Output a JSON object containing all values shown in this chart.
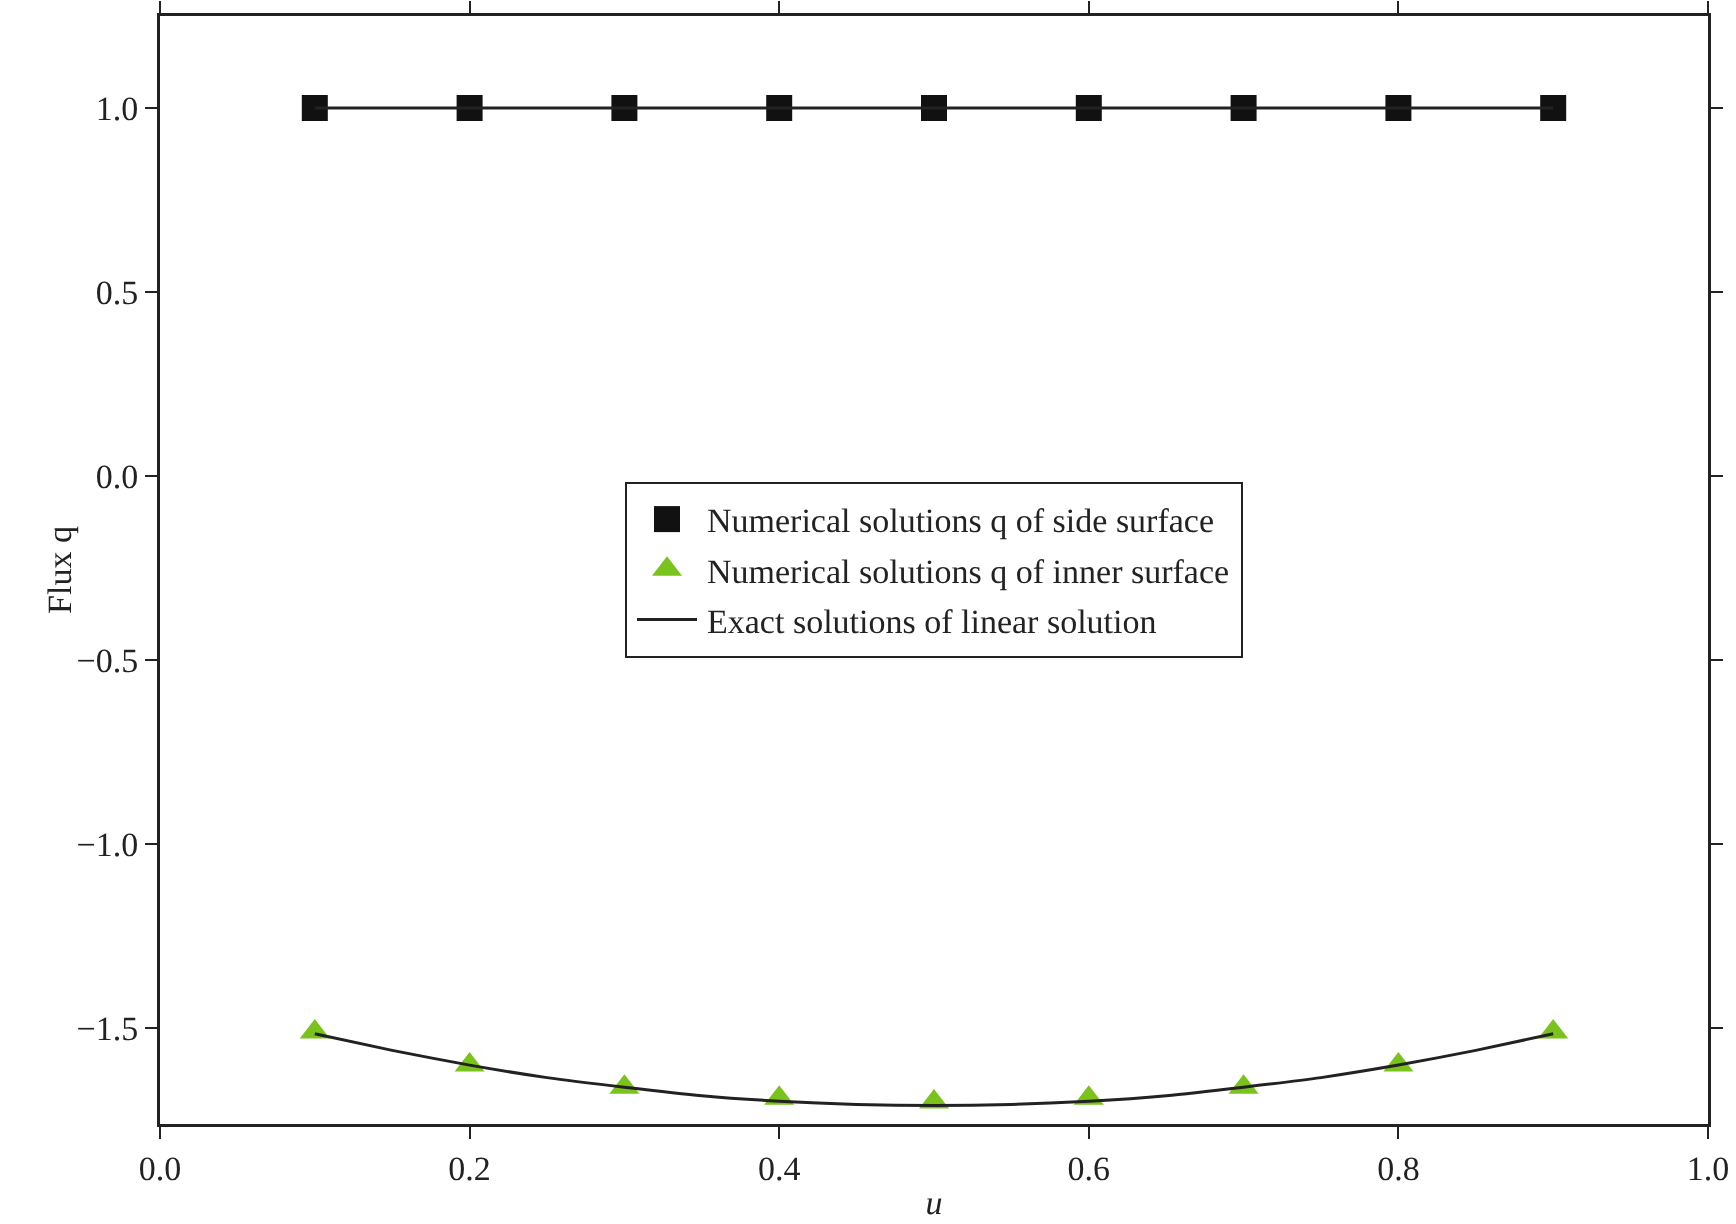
{
  "chart_data": {
    "type": "scatter",
    "xlabel": "u",
    "ylabel": "Flux q",
    "xlim": [
      0,
      1
    ],
    "ylim": [
      -1.76,
      1.25
    ],
    "xticks": [
      {
        "value": 0,
        "label": "0.0"
      },
      0.2,
      0.4,
      0.6,
      0.8,
      {
        "value": 1,
        "label": "1.0"
      }
    ],
    "yticks": [
      {
        "value": -1.5,
        "label": "−1.5"
      },
      {
        "value": -1,
        "label": "−1.0"
      },
      {
        "value": -0.5,
        "label": "−0.5"
      },
      {
        "value": 0,
        "label": "0.0"
      },
      0.5,
      {
        "value": 1,
        "label": "1.0"
      }
    ],
    "grid": false,
    "legend": "center",
    "series": [
      {
        "name": "Numerical solutions q of side surface",
        "color": "#111111",
        "marker": "square",
        "x": [
          0.1,
          0.2,
          0.3,
          0.4,
          0.5,
          0.6,
          0.7,
          0.8,
          0.9
        ],
        "values": [
          1,
          1,
          1,
          1,
          1,
          1,
          1,
          1,
          1
        ]
      },
      {
        "name": "Numerical solutions q of inner surface",
        "color": "#7ac21c",
        "marker": "triangle",
        "x": [
          0.1,
          0.2,
          0.3,
          0.4,
          0.5,
          0.6,
          0.7,
          0.8,
          0.9
        ],
        "values": [
          -1.51,
          -1.6,
          -1.66,
          -1.69,
          -1.7,
          -1.69,
          -1.66,
          -1.6,
          -1.51
        ]
      },
      {
        "name": "Exact solutions of linear solution",
        "type": "line",
        "color": "#222222",
        "marker": "none",
        "line_style": "solid",
        "x": [
          0.1,
          0.15,
          0.2,
          0.25,
          0.3,
          0.35,
          0.4,
          0.45,
          0.5,
          0.55,
          0.6,
          0.65,
          0.7,
          0.75,
          0.8,
          0.85,
          0.9
        ],
        "values": [
          -1.515,
          -1.56,
          -1.6,
          -1.634,
          -1.66,
          -1.683,
          -1.698,
          -1.707,
          -1.71,
          -1.707,
          -1.698,
          -1.683,
          -1.66,
          -1.634,
          -1.6,
          -1.56,
          -1.515
        ]
      },
      {
        "type": "line",
        "color": "#222222",
        "marker": "none",
        "line_style": "solid",
        "x": [
          0.1,
          0.9
        ],
        "values": [
          1,
          1
        ]
      }
    ]
  }
}
